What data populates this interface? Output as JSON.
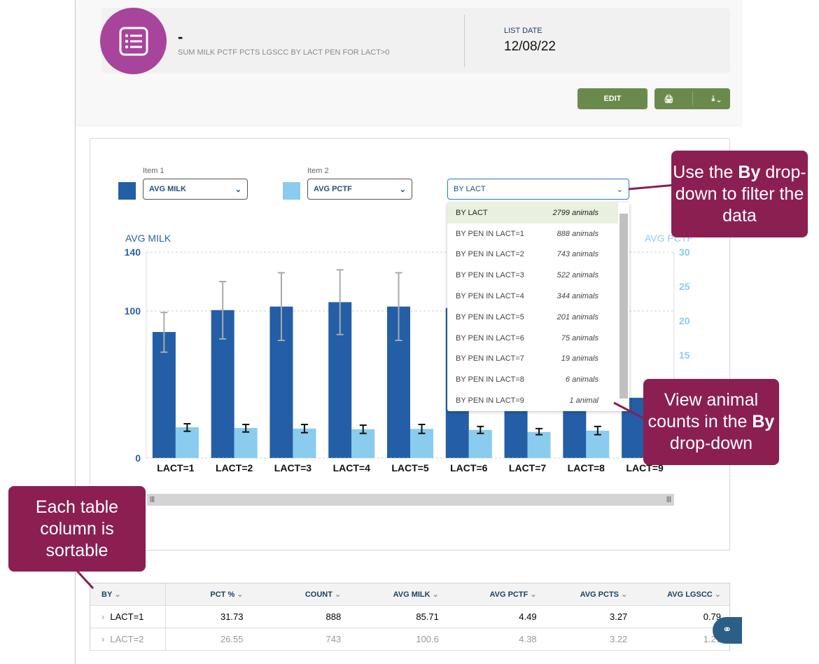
{
  "header": {
    "title": "-",
    "subtitle": "SUM MILK PCTF PCTS LGSCC BY LACT PEN FOR LACT>0",
    "list_date_label": "LIST DATE",
    "list_date": "12/08/22",
    "edit_label": "EDIT",
    "icon": "list-icon"
  },
  "controls": {
    "item1_label": "Item 1",
    "item1_value": "AVG MILK",
    "item2_label": "Item 2",
    "item2_value": "AVG PCTF",
    "by_value": "BY LACT",
    "item1_color": "#235ea7",
    "item2_color": "#89ccee"
  },
  "by_options": [
    {
      "label": "BY LACT",
      "count": "2799 animals"
    },
    {
      "label": "BY PEN IN LACT=1",
      "count": "888 animals"
    },
    {
      "label": "BY PEN IN LACT=2",
      "count": "743 animals"
    },
    {
      "label": "BY PEN IN LACT=3",
      "count": "522 animals"
    },
    {
      "label": "BY PEN IN LACT=4",
      "count": "344 animals"
    },
    {
      "label": "BY PEN IN LACT=5",
      "count": "201 animals"
    },
    {
      "label": "BY PEN IN LACT=6",
      "count": "75 animals"
    },
    {
      "label": "BY PEN IN LACT=7",
      "count": "19 animals"
    },
    {
      "label": "BY PEN IN LACT=8",
      "count": "6 animals"
    },
    {
      "label": "BY PEN IN LACT=9",
      "count": "1 animal"
    }
  ],
  "chart_data": {
    "type": "bar",
    "categories": [
      "LACT=1",
      "LACT=2",
      "LACT=3",
      "LACT=4",
      "LACT=5",
      "LACT=6",
      "LACT=7",
      "LACT=8",
      "LACT=9"
    ],
    "ylabel": "AVG MILK",
    "y2label": "AVG PCTF",
    "ylim": [
      0,
      140
    ],
    "y2lim": [
      0,
      30
    ],
    "yticks": [
      "0",
      "100",
      "140"
    ],
    "y2ticks": [
      "15",
      "20",
      "25",
      "30"
    ],
    "series": [
      {
        "name": "AVG MILK",
        "axis": "left",
        "values": [
          85.71,
          100.6,
          103,
          106,
          103,
          102,
          98,
          96,
          41
        ],
        "err_low": [
          72,
          81,
          80,
          84,
          80,
          84,
          null,
          null,
          null
        ],
        "err_high": [
          99,
          120,
          126,
          128,
          126,
          120,
          null,
          null,
          null
        ]
      },
      {
        "name": "AVG PCTF",
        "axis": "right",
        "values": [
          4.49,
          4.38,
          4.3,
          4.2,
          4.25,
          4.1,
          3.8,
          4.0,
          4.0
        ],
        "err_low": [
          3.9,
          3.8,
          3.7,
          3.6,
          3.6,
          3.6,
          3.4,
          3.4,
          null
        ],
        "err_high": [
          5.0,
          4.9,
          4.9,
          4.8,
          4.9,
          4.6,
          4.3,
          4.6,
          null
        ]
      }
    ]
  },
  "table": {
    "columns": [
      "BY",
      "PCT %",
      "COUNT",
      "AVG MILK",
      "AVG PCTF",
      "AVG PCTS",
      "AVG LGSCC"
    ],
    "rows": [
      [
        "LACT=1",
        "31.73",
        "888",
        "85.71",
        "4.49",
        "3.27",
        "0.79"
      ],
      [
        "LACT=2",
        "26.55",
        "743",
        "100.6",
        "4.38",
        "3.22",
        "1.21"
      ]
    ]
  },
  "callouts": {
    "by": [
      "Use the ",
      "By",
      " drop-down to filter the data"
    ],
    "counts": [
      "View animal counts in the ",
      "By",
      " drop-down"
    ],
    "sort": "Each table column is sortable"
  }
}
